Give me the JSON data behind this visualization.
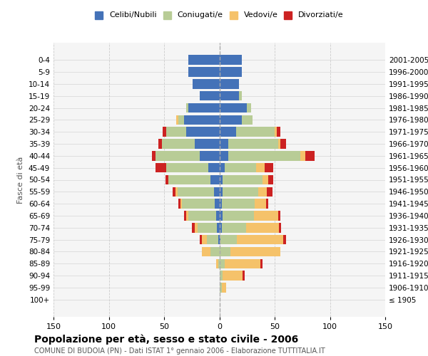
{
  "age_groups": [
    "100+",
    "95-99",
    "90-94",
    "85-89",
    "80-84",
    "75-79",
    "70-74",
    "65-69",
    "60-64",
    "55-59",
    "50-54",
    "45-49",
    "40-44",
    "35-39",
    "30-34",
    "25-29",
    "20-24",
    "15-19",
    "10-14",
    "5-9",
    "0-4"
  ],
  "birth_years": [
    "≤ 1905",
    "1906-1910",
    "1911-1915",
    "1916-1920",
    "1921-1925",
    "1926-1930",
    "1931-1935",
    "1936-1940",
    "1941-1945",
    "1946-1950",
    "1951-1955",
    "1956-1960",
    "1961-1965",
    "1966-1970",
    "1971-1975",
    "1976-1980",
    "1981-1985",
    "1986-1990",
    "1991-1995",
    "1996-2000",
    "2001-2005"
  ],
  "male": {
    "celibi": [
      0,
      0,
      0,
      0,
      0,
      1,
      2,
      3,
      4,
      5,
      8,
      10,
      18,
      22,
      30,
      32,
      28,
      18,
      24,
      28,
      28
    ],
    "coniugati": [
      0,
      0,
      0,
      1,
      8,
      10,
      18,
      25,
      30,
      33,
      38,
      38,
      40,
      30,
      18,
      5,
      2,
      0,
      0,
      0,
      0
    ],
    "vedovi": [
      0,
      0,
      0,
      2,
      8,
      5,
      2,
      2,
      1,
      2,
      0,
      0,
      0,
      0,
      0,
      2,
      0,
      0,
      0,
      0,
      0
    ],
    "divorziati": [
      0,
      0,
      0,
      0,
      0,
      2,
      3,
      2,
      2,
      2,
      3,
      10,
      3,
      3,
      3,
      0,
      0,
      0,
      0,
      0,
      0
    ]
  },
  "female": {
    "nubili": [
      0,
      0,
      0,
      0,
      0,
      1,
      2,
      3,
      2,
      3,
      3,
      5,
      8,
      8,
      15,
      20,
      25,
      18,
      18,
      20,
      20
    ],
    "coniugate": [
      0,
      2,
      3,
      5,
      10,
      15,
      22,
      28,
      30,
      32,
      36,
      28,
      65,
      45,
      35,
      10,
      4,
      2,
      0,
      0,
      0
    ],
    "vedove": [
      0,
      4,
      18,
      32,
      45,
      42,
      30,
      22,
      10,
      8,
      5,
      8,
      5,
      2,
      2,
      0,
      0,
      0,
      0,
      0,
      0
    ],
    "divorziate": [
      0,
      0,
      2,
      2,
      0,
      2,
      2,
      2,
      2,
      5,
      5,
      8,
      8,
      5,
      3,
      0,
      0,
      0,
      0,
      0,
      0
    ]
  },
  "colors": {
    "celibi": "#4472b8",
    "coniugati": "#b8cc96",
    "vedovi": "#f5c26a",
    "divorziati": "#cc2222"
  },
  "title": "Popolazione per età, sesso e stato civile - 2006",
  "subtitle": "COMUNE DI BUDOIA (PN) - Dati ISTAT 1° gennaio 2006 - Elaborazione TUTTITALIA.IT",
  "ylabel_left": "Fasce di età",
  "xlim": 150,
  "legend_labels": [
    "Celibi/Nubili",
    "Coniugati/e",
    "Vedovi/e",
    "Divorziati/e"
  ],
  "background_color": "#ffffff",
  "bar_height": 0.8
}
